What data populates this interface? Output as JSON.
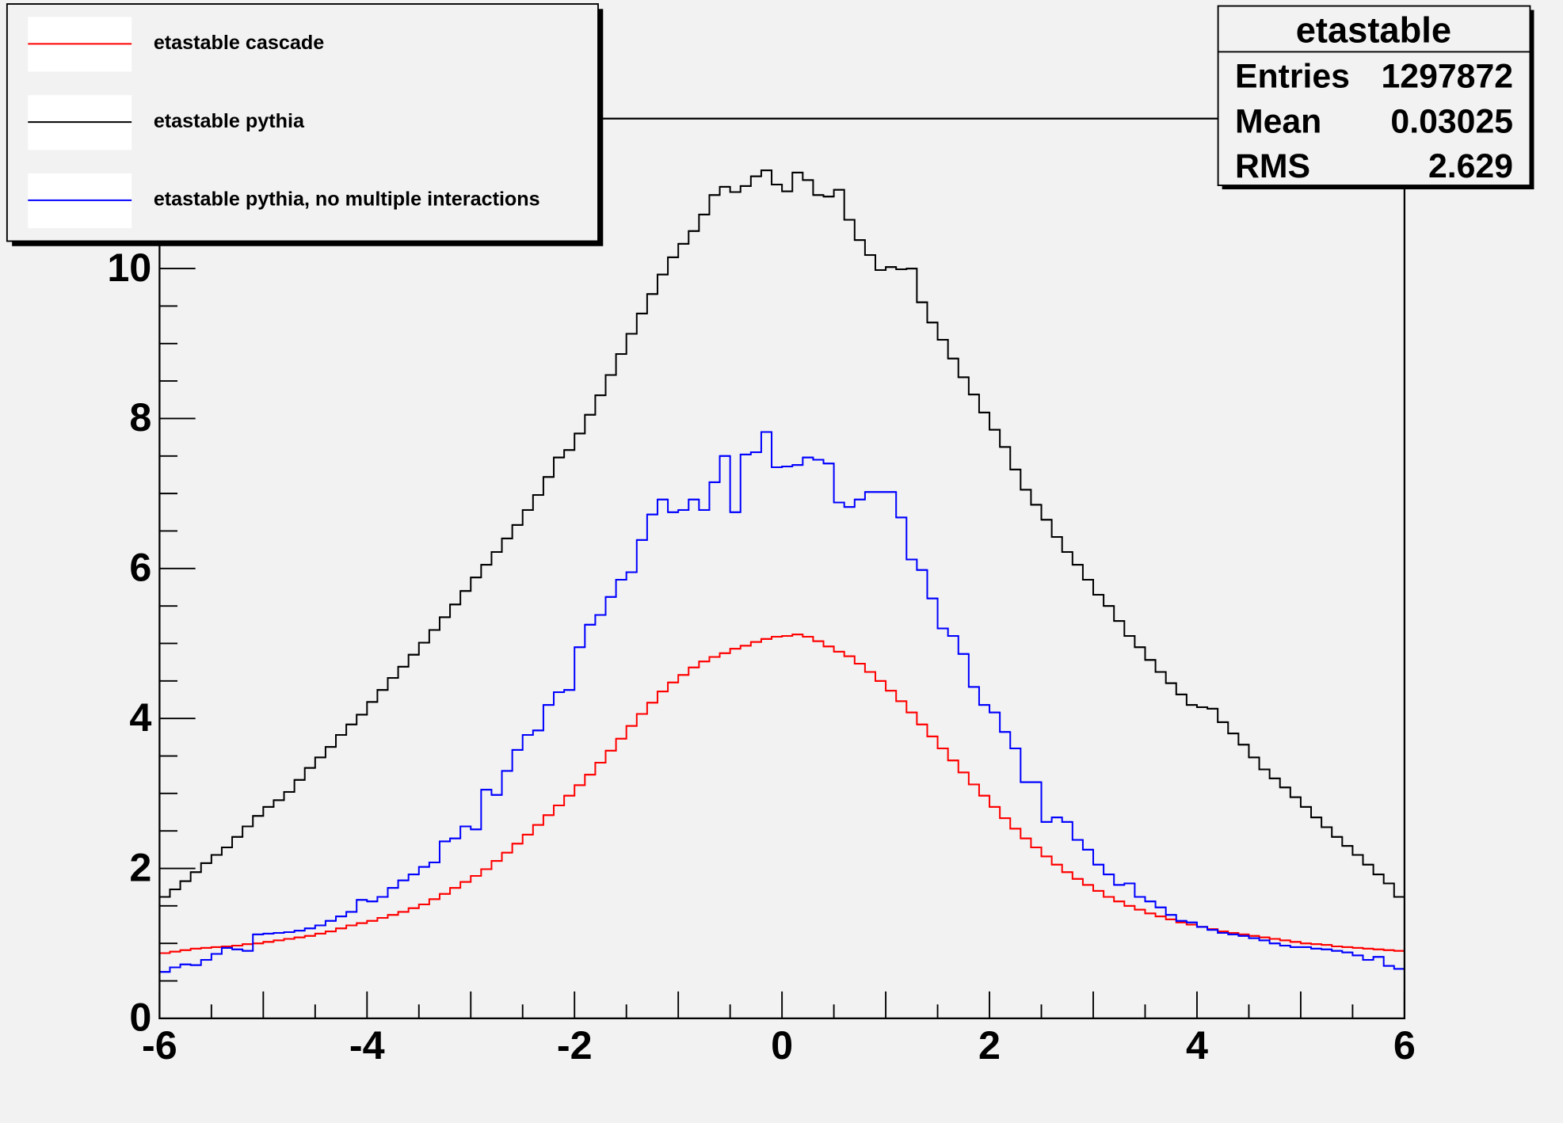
{
  "chart_data": {
    "type": "histogram",
    "bins": [
      -6,
      -5.9,
      -5.8,
      -5.7,
      -5.6,
      -5.5,
      -5.4,
      -5.3,
      -5.2,
      -5.1,
      -5,
      -4.9,
      -4.8,
      -4.7,
      -4.6,
      -4.5,
      -4.4,
      -4.3,
      -4.2,
      -4.1,
      -4,
      -3.9,
      -3.8,
      -3.7,
      -3.6,
      -3.5,
      -3.4,
      -3.3,
      -3.2,
      -3.1,
      -3,
      -2.9,
      -2.8,
      -2.7,
      -2.6,
      -2.5,
      -2.4,
      -2.3,
      -2.2,
      -2.1,
      -2,
      -1.9,
      -1.8,
      -1.7,
      -1.6,
      -1.5,
      -1.4,
      -1.3,
      -1.2,
      -1.1,
      -1,
      -0.9,
      -0.8,
      -0.7,
      -0.6,
      -0.5,
      -0.4,
      -0.3,
      -0.2,
      -0.1,
      0,
      0.1,
      0.2,
      0.3,
      0.4,
      0.5,
      0.6,
      0.7,
      0.8,
      0.9,
      1,
      1.1,
      1.2,
      1.3,
      1.4,
      1.5,
      1.6,
      1.7,
      1.8,
      1.9,
      2,
      2.1,
      2.2,
      2.3,
      2.4,
      2.5,
      2.6,
      2.7,
      2.8,
      2.9,
      3,
      3.1,
      3.2,
      3.3,
      3.4,
      3.5,
      3.6,
      3.7,
      3.8,
      3.9,
      4,
      4.1,
      4.2,
      4.3,
      4.4,
      4.5,
      4.6,
      4.7,
      4.8,
      4.9,
      5,
      5.1,
      5.2,
      5.3,
      5.4,
      5.5,
      5.6,
      5.7,
      5.8,
      5.9,
      6
    ],
    "series": [
      {
        "name": "etastable cascade",
        "color": "#ff0000",
        "values": [
          0.87,
          0.89,
          0.91,
          0.93,
          0.94,
          0.95,
          0.96,
          0.97,
          0.99,
          1.0,
          1.02,
          1.04,
          1.06,
          1.08,
          1.1,
          1.13,
          1.16,
          1.2,
          1.24,
          1.27,
          1.3,
          1.34,
          1.38,
          1.42,
          1.47,
          1.52,
          1.59,
          1.66,
          1.74,
          1.82,
          1.9,
          1.99,
          2.1,
          2.21,
          2.33,
          2.45,
          2.58,
          2.71,
          2.84,
          2.97,
          3.11,
          3.25,
          3.41,
          3.57,
          3.73,
          3.9,
          4.06,
          4.21,
          4.36,
          4.48,
          4.58,
          4.68,
          4.76,
          4.82,
          4.87,
          4.93,
          4.97,
          5.02,
          5.06,
          5.09,
          5.1,
          5.12,
          5.09,
          5.03,
          4.96,
          4.89,
          4.83,
          4.73,
          4.62,
          4.5,
          4.37,
          4.23,
          4.08,
          3.92,
          3.76,
          3.6,
          3.44,
          3.28,
          3.12,
          2.97,
          2.82,
          2.67,
          2.53,
          2.4,
          2.28,
          2.16,
          2.05,
          1.95,
          1.86,
          1.78,
          1.7,
          1.62,
          1.56,
          1.5,
          1.45,
          1.4,
          1.36,
          1.32,
          1.28,
          1.25,
          1.22,
          1.19,
          1.16,
          1.14,
          1.12,
          1.1,
          1.08,
          1.06,
          1.04,
          1.02,
          1.0,
          0.99,
          0.98,
          0.96,
          0.95,
          0.94,
          0.93,
          0.92,
          0.91,
          0.9
        ]
      },
      {
        "name": "etastable pythia",
        "color": "#000000",
        "values": [
          1.62,
          1.72,
          1.83,
          1.95,
          2.07,
          2.18,
          2.28,
          2.42,
          2.56,
          2.7,
          2.82,
          2.91,
          3.02,
          3.18,
          3.34,
          3.48,
          3.62,
          3.78,
          3.92,
          4.05,
          4.22,
          4.38,
          4.54,
          4.69,
          4.85,
          5.01,
          5.18,
          5.35,
          5.52,
          5.7,
          5.88,
          6.05,
          6.22,
          6.4,
          6.58,
          6.78,
          6.98,
          7.22,
          7.48,
          7.58,
          7.8,
          8.05,
          8.31,
          8.58,
          8.86,
          9.13,
          9.4,
          9.66,
          9.92,
          10.15,
          10.33,
          10.5,
          10.72,
          10.98,
          11.09,
          11.02,
          11.1,
          11.23,
          11.31,
          11.12,
          11.03,
          11.28,
          11.18,
          10.98,
          10.96,
          11.05,
          10.65,
          10.38,
          10.18,
          9.98,
          10.02,
          9.99,
          10.0,
          9.55,
          9.28,
          9.05,
          8.8,
          8.55,
          8.32,
          8.08,
          7.85,
          7.62,
          7.32,
          7.05,
          6.85,
          6.65,
          6.42,
          6.22,
          6.05,
          5.85,
          5.65,
          5.5,
          5.3,
          5.1,
          4.95,
          4.78,
          4.62,
          4.47,
          4.32,
          4.18,
          4.15,
          4.13,
          3.95,
          3.8,
          3.65,
          3.48,
          3.32,
          3.2,
          3.08,
          2.95,
          2.82,
          2.68,
          2.55,
          2.42,
          2.3,
          2.18,
          2.05,
          1.92,
          1.8,
          1.62
        ]
      },
      {
        "name": "etastable pythia, no multiple interactions",
        "color": "#0000ff",
        "values": [
          0.62,
          0.68,
          0.72,
          0.71,
          0.78,
          0.86,
          0.94,
          0.92,
          0.9,
          1.12,
          1.13,
          1.14,
          1.15,
          1.17,
          1.2,
          1.24,
          1.3,
          1.36,
          1.42,
          1.58,
          1.56,
          1.62,
          1.74,
          1.84,
          1.92,
          2.02,
          2.08,
          2.36,
          2.4,
          2.56,
          2.52,
          3.05,
          2.98,
          3.3,
          3.58,
          3.78,
          3.84,
          4.18,
          4.35,
          4.38,
          4.95,
          5.25,
          5.38,
          5.62,
          5.85,
          5.95,
          6.38,
          6.72,
          6.92,
          6.75,
          6.78,
          6.92,
          6.78,
          7.15,
          7.5,
          6.75,
          7.52,
          7.55,
          7.82,
          7.35,
          7.36,
          7.38,
          7.48,
          7.45,
          7.4,
          6.88,
          6.82,
          6.92,
          7.02,
          7.02,
          7.02,
          6.68,
          6.12,
          5.98,
          5.6,
          5.2,
          5.1,
          4.86,
          4.42,
          4.18,
          4.08,
          3.82,
          3.6,
          3.15,
          3.15,
          2.62,
          2.68,
          2.62,
          2.38,
          2.25,
          2.05,
          1.92,
          1.78,
          1.8,
          1.62,
          1.56,
          1.48,
          1.38,
          1.3,
          1.28,
          1.22,
          1.18,
          1.14,
          1.12,
          1.1,
          1.07,
          1.04,
          1.0,
          0.97,
          0.95,
          0.95,
          0.93,
          0.92,
          0.9,
          0.88,
          0.84,
          0.78,
          0.82,
          0.7,
          0.66
        ]
      }
    ],
    "xlim": [
      -6,
      6
    ],
    "ylim": [
      0,
      12
    ],
    "xticks": [
      -6,
      -4,
      -2,
      0,
      2,
      4,
      6
    ],
    "yticks": [
      0,
      2,
      4,
      6,
      8,
      10
    ],
    "stats": {
      "title": "etastable",
      "rows": [
        [
          "Entries",
          "1297872"
        ],
        [
          "Mean",
          "0.03025"
        ],
        [
          "RMS",
          "2.629"
        ]
      ]
    }
  }
}
